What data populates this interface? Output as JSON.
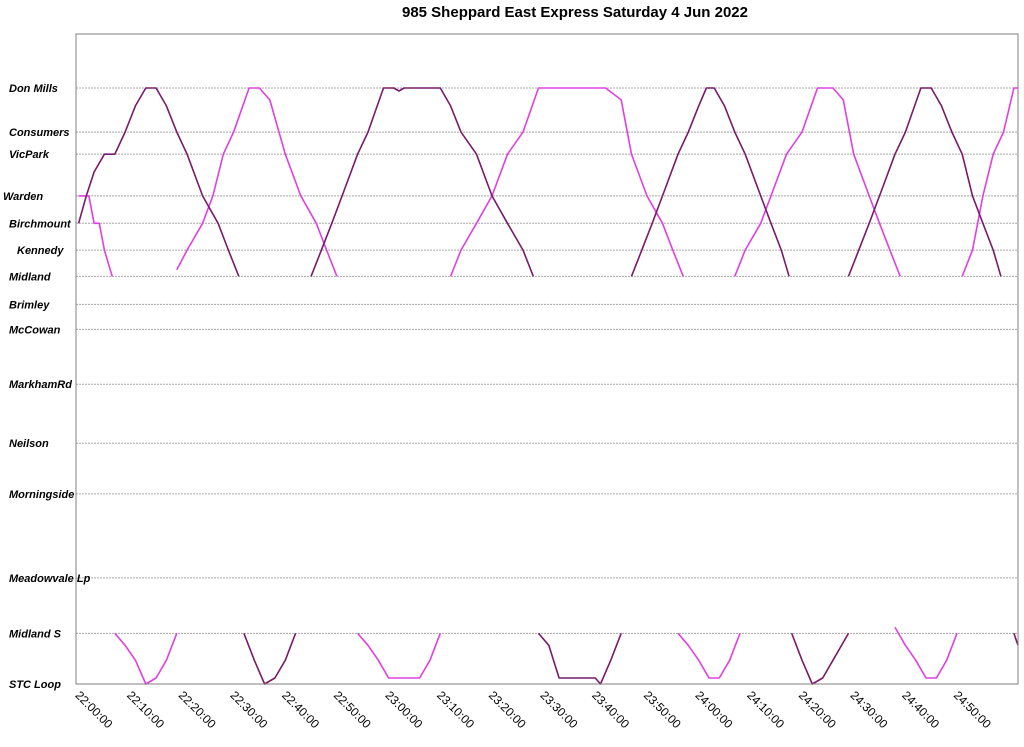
{
  "chart_data": {
    "type": "line",
    "title": "985 Sheppard East Express Saturday 4 Jun 2022",
    "xlabel": "",
    "ylabel": "",
    "x_unit": "minutes after 22:00:00",
    "xlim": [
      -0.5,
      181.8
    ],
    "x_ticks": [
      0,
      10,
      20,
      30,
      40,
      50,
      60,
      70,
      80,
      90,
      100,
      110,
      120,
      130,
      140,
      150,
      160,
      170
    ],
    "x_tick_labels": [
      "22:00:00",
      "22:10:00",
      "22:20:00",
      "22:30:00",
      "22:40:00",
      "22:50:00",
      "23:00:00",
      "23:10:00",
      "23:20:00",
      "23:30:00",
      "23:40:00",
      "23:50:00",
      "24:00:00",
      "24:10:00",
      "24:20:00",
      "24:30:00",
      "24:40:00",
      "24:50:00"
    ],
    "stops": [
      {
        "name": "Don Mills",
        "pos": 0
      },
      {
        "name": "Consumers",
        "pos": 0.074
      },
      {
        "name": "VicPark",
        "pos": 0.111
      },
      {
        "name": "Warden",
        "pos": 0.181
      },
      {
        "name": "Birchmount",
        "pos": 0.227
      },
      {
        "name": "Kennedy",
        "pos": 0.272
      },
      {
        "name": "Midland",
        "pos": 0.316
      },
      {
        "name": "Brimley",
        "pos": 0.363
      },
      {
        "name": "McCowan",
        "pos": 0.405
      },
      {
        "name": "MarkhamRd",
        "pos": 0.497
      },
      {
        "name": "Neilson",
        "pos": 0.596
      },
      {
        "name": "Morningside",
        "pos": 0.681
      },
      {
        "name": "Meadowvale Lp",
        "pos": 0.822
      },
      {
        "name": "Midland S",
        "pos": 0.915
      },
      {
        "name": "STC Loop",
        "pos": 1
      }
    ],
    "grid": true,
    "legend": "none",
    "colors": {
      "bus_a": "#e040e0",
      "bus_b": "#7a1a6a"
    },
    "series": [
      {
        "color_key": "bus_a",
        "segments": [
          [
            [
              0,
              0.181
            ],
            [
              2,
              0.181
            ],
            [
              3,
              0.227
            ],
            [
              4,
              0.227
            ],
            [
              5,
              0.272
            ],
            [
              6.5,
              0.316
            ]
          ],
          [
            [
              19,
              0.305
            ],
            [
              21,
              0.272
            ],
            [
              24,
              0.227
            ],
            [
              26,
              0.181
            ],
            [
              28,
              0.111
            ],
            [
              30,
              0.074
            ],
            [
              33,
              0
            ],
            [
              35,
              0
            ],
            [
              37,
              0.02
            ],
            [
              40,
              0.111
            ],
            [
              43,
              0.181
            ],
            [
              46,
              0.227
            ],
            [
              48,
              0.272
            ],
            [
              50,
              0.316
            ]
          ],
          [
            [
              72,
              0.316
            ],
            [
              74,
              0.272
            ],
            [
              77,
              0.227
            ],
            [
              80,
              0.181
            ],
            [
              83,
              0.111
            ],
            [
              86,
              0.074
            ],
            [
              89,
              0
            ],
            [
              102,
              0
            ],
            [
              105,
              0.02
            ],
            [
              107,
              0.111
            ],
            [
              110,
              0.181
            ],
            [
              113,
              0.227
            ],
            [
              115,
              0.272
            ],
            [
              117,
              0.316
            ]
          ],
          [
            [
              127,
              0.316
            ],
            [
              129,
              0.272
            ],
            [
              132,
              0.227
            ],
            [
              134,
              0.181
            ],
            [
              137,
              0.111
            ],
            [
              140,
              0.074
            ],
            [
              143,
              0
            ],
            [
              146,
              0
            ],
            [
              148,
              0.02
            ],
            [
              150,
              0.111
            ],
            [
              153,
              0.181
            ],
            [
              155,
              0.227
            ],
            [
              157,
              0.272
            ],
            [
              159,
              0.316
            ]
          ],
          [
            [
              171,
              0.316
            ],
            [
              173,
              0.272
            ],
            [
              175,
              0.181
            ],
            [
              177,
              0.111
            ],
            [
              179,
              0.074
            ],
            [
              181,
              0
            ],
            [
              181.8,
              0
            ]
          ],
          [
            [
              7,
              0.915
            ],
            [
              9,
              0.935
            ],
            [
              11,
              0.96
            ],
            [
              13,
              1
            ],
            [
              15,
              0.99
            ],
            [
              17,
              0.96
            ],
            [
              19,
              0.915
            ]
          ],
          [
            [
              54,
              0.915
            ],
            [
              56,
              0.935
            ],
            [
              58,
              0.96
            ],
            [
              60,
              0.99
            ],
            [
              66,
              0.99
            ],
            [
              68,
              0.96
            ],
            [
              70,
              0.915
            ]
          ],
          [
            [
              116,
              0.915
            ],
            [
              118,
              0.935
            ],
            [
              120,
              0.96
            ],
            [
              122,
              0.99
            ],
            [
              124,
              0.99
            ],
            [
              126,
              0.96
            ],
            [
              128,
              0.915
            ]
          ],
          [
            [
              158,
              0.905
            ],
            [
              160,
              0.935
            ],
            [
              162,
              0.96
            ],
            [
              164,
              0.99
            ],
            [
              166,
              0.99
            ],
            [
              168,
              0.96
            ],
            [
              170,
              0.915
            ]
          ]
        ]
      },
      {
        "color_key": "bus_b",
        "segments": [
          [
            [
              0,
              0.227
            ],
            [
              1.5,
              0.181
            ],
            [
              3,
              0.141
            ],
            [
              5,
              0.111
            ],
            [
              7,
              0.111
            ],
            [
              9,
              0.074
            ],
            [
              11,
              0.03
            ],
            [
              13,
              0
            ],
            [
              15,
              0
            ],
            [
              17,
              0.03
            ],
            [
              19,
              0.074
            ],
            [
              21,
              0.111
            ],
            [
              24,
              0.181
            ],
            [
              27,
              0.227
            ],
            [
              29,
              0.272
            ],
            [
              31,
              0.316
            ]
          ],
          [
            [
              45,
              0.316
            ],
            [
              47,
              0.272
            ],
            [
              49,
              0.227
            ],
            [
              51,
              0.181
            ],
            [
              54,
              0.111
            ],
            [
              56,
              0.074
            ],
            [
              59,
              0
            ],
            [
              61,
              0
            ],
            [
              62,
              0.005
            ],
            [
              63,
              0
            ],
            [
              70,
              0
            ],
            [
              72,
              0.03
            ],
            [
              74,
              0.074
            ],
            [
              77,
              0.111
            ],
            [
              80,
              0.181
            ],
            [
              83,
              0.227
            ],
            [
              86,
              0.272
            ],
            [
              88,
              0.316
            ]
          ],
          [
            [
              107,
              0.316
            ],
            [
              109,
              0.272
            ],
            [
              111,
              0.227
            ],
            [
              113,
              0.181
            ],
            [
              116,
              0.111
            ],
            [
              118,
              0.074
            ],
            [
              120,
              0.03
            ],
            [
              121.5,
              0
            ],
            [
              123,
              0
            ],
            [
              125,
              0.03
            ],
            [
              127,
              0.074
            ],
            [
              129,
              0.111
            ],
            [
              132,
              0.181
            ],
            [
              134,
              0.227
            ],
            [
              136,
              0.272
            ],
            [
              137.5,
              0.316
            ]
          ],
          [
            [
              149,
              0.316
            ],
            [
              151,
              0.272
            ],
            [
              153,
              0.227
            ],
            [
              155,
              0.181
            ],
            [
              158,
              0.111
            ],
            [
              160,
              0.074
            ],
            [
              163,
              0
            ],
            [
              165,
              0
            ],
            [
              167,
              0.03
            ],
            [
              169,
              0.074
            ],
            [
              171,
              0.111
            ],
            [
              173,
              0.181
            ],
            [
              175,
              0.227
            ],
            [
              177,
              0.272
            ],
            [
              178.5,
              0.316
            ]
          ],
          [
            [
              32,
              0.915
            ],
            [
              34,
              0.96
            ],
            [
              36,
              1
            ],
            [
              38,
              0.99
            ],
            [
              40,
              0.96
            ],
            [
              42,
              0.915
            ]
          ],
          [
            [
              89,
              0.915
            ],
            [
              91,
              0.935
            ],
            [
              93,
              0.99
            ],
            [
              100,
              0.99
            ],
            [
              101,
              1
            ],
            [
              103,
              0.96
            ],
            [
              105,
              0.915
            ]
          ],
          [
            [
              138,
              0.915
            ],
            [
              140,
              0.96
            ],
            [
              142,
              1
            ],
            [
              144,
              0.99
            ],
            [
              146,
              0.96
            ],
            [
              149,
              0.915
            ]
          ],
          [
            [
              181,
              0.915
            ],
            [
              181.8,
              0.935
            ]
          ]
        ]
      }
    ]
  }
}
